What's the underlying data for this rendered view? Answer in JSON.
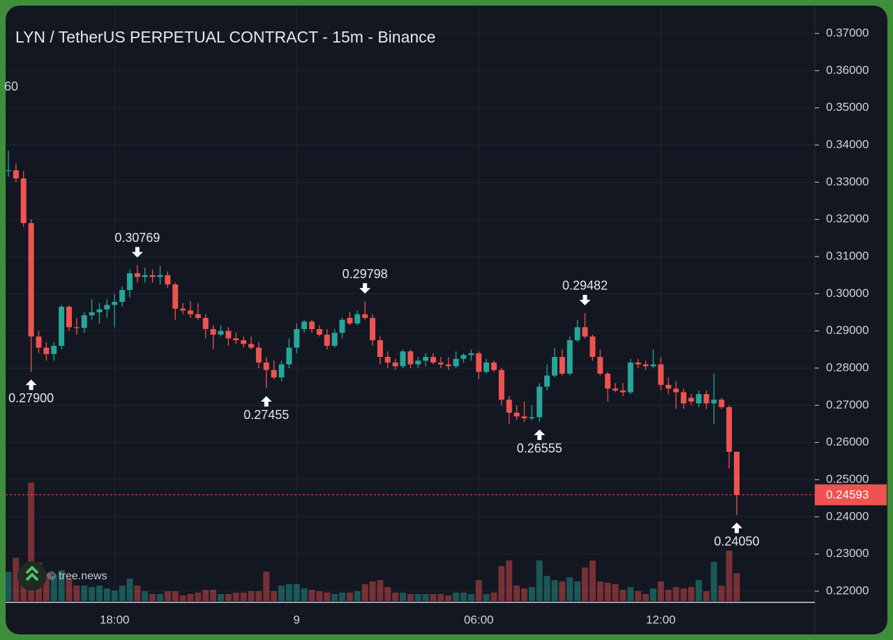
{
  "chart_data": {
    "type": "candlestick",
    "title": "LYN / TetherUS PERPETUAL CONTRACT - 15m - Binance",
    "clipped_label": "60",
    "watermark": "© tree.news",
    "categories": [
      null,
      null,
      null,
      null,
      null,
      null,
      null,
      null,
      null,
      null,
      null,
      null,
      null,
      null,
      "18:00",
      null,
      null,
      null,
      null,
      null,
      null,
      null,
      null,
      null,
      null,
      null,
      null,
      null,
      null,
      null,
      null,
      null,
      null,
      null,
      null,
      null,
      null,
      null,
      "9",
      null,
      null,
      null,
      null,
      null,
      null,
      null,
      null,
      null,
      null,
      null,
      null,
      null,
      null,
      null,
      null,
      null,
      null,
      null,
      null,
      null,
      null,
      null,
      "06:00",
      null,
      null,
      null,
      null,
      null,
      null,
      null,
      null,
      null,
      null,
      null,
      null,
      null,
      null,
      null,
      null,
      null,
      null,
      null,
      null,
      null,
      null,
      null,
      "12:00",
      null,
      null,
      null,
      null,
      null,
      null,
      null,
      null,
      null,
      null
    ],
    "open": [
      0.333,
      0.3332,
      0.331,
      0.319,
      0.2885,
      0.2855,
      0.2838,
      0.286,
      0.2965,
      0.291,
      0.2908,
      0.2942,
      0.295,
      0.2958,
      0.297,
      0.2978,
      0.301,
      0.3055,
      0.3045,
      0.305,
      0.3045,
      0.305,
      0.3025,
      0.296,
      0.2955,
      0.2945,
      0.2935,
      0.2905,
      0.289,
      0.29,
      0.288,
      0.2875,
      0.2865,
      0.2855,
      0.2815,
      0.2795,
      0.2775,
      0.281,
      0.2855,
      0.2905,
      0.2925,
      0.2905,
      0.289,
      0.286,
      0.2895,
      0.2935,
      0.292,
      0.2945,
      0.2935,
      0.2875,
      0.283,
      0.2815,
      0.2805,
      0.2845,
      0.281,
      0.282,
      0.283,
      0.2815,
      0.281,
      0.2805,
      0.2825,
      0.2835,
      0.284,
      0.279,
      0.2815,
      0.2795,
      0.2715,
      0.268,
      0.267,
      0.2665,
      0.2668,
      0.275,
      0.278,
      0.283,
      0.2785,
      0.2875,
      0.291,
      0.2885,
      0.283,
      0.2785,
      0.2745,
      0.274,
      0.2735,
      0.2815,
      0.281,
      0.2805,
      0.281,
      0.2755,
      0.2745,
      0.2735,
      0.272,
      0.2705,
      0.273,
      0.2705,
      0.2715,
      0.2695,
      0.2575
    ],
    "high": [
      0.3385,
      0.335,
      0.333,
      0.32,
      0.29,
      0.287,
      0.287,
      0.297,
      0.297,
      0.2935,
      0.295,
      0.2985,
      0.2975,
      0.2985,
      0.3,
      0.302,
      0.3065,
      0.30769,
      0.307,
      0.3065,
      0.3075,
      0.306,
      0.303,
      0.2975,
      0.298,
      0.2975,
      0.2945,
      0.2915,
      0.2915,
      0.291,
      0.2895,
      0.2885,
      0.2885,
      0.287,
      0.283,
      0.282,
      0.282,
      0.288,
      0.292,
      0.293,
      0.293,
      0.2915,
      0.2905,
      0.2905,
      0.2935,
      0.295,
      0.2955,
      0.29798,
      0.2945,
      0.2885,
      0.2845,
      0.2825,
      0.285,
      0.285,
      0.283,
      0.284,
      0.284,
      0.283,
      0.283,
      0.2845,
      0.284,
      0.285,
      0.2845,
      0.2825,
      0.282,
      0.28,
      0.2725,
      0.27,
      0.271,
      0.27,
      0.276,
      0.281,
      0.2855,
      0.285,
      0.2885,
      0.293,
      0.29482,
      0.289,
      0.285,
      0.279,
      0.276,
      0.276,
      0.2825,
      0.2825,
      0.282,
      0.285,
      0.283,
      0.2775,
      0.2765,
      0.2745,
      0.273,
      0.274,
      0.274,
      0.2785,
      0.272,
      0.27,
      0.2575
    ],
    "low": [
      0.3315,
      0.33,
      0.318,
      0.279,
      0.284,
      0.282,
      0.282,
      0.285,
      0.29,
      0.289,
      0.2895,
      0.293,
      0.292,
      0.2935,
      0.291,
      0.2965,
      0.299,
      0.303,
      0.303,
      0.303,
      0.3025,
      0.3015,
      0.293,
      0.2945,
      0.2935,
      0.293,
      0.288,
      0.285,
      0.2885,
      0.286,
      0.2865,
      0.2855,
      0.285,
      0.28,
      0.27455,
      0.277,
      0.2765,
      0.28,
      0.284,
      0.2895,
      0.2895,
      0.2885,
      0.285,
      0.2855,
      0.288,
      0.2915,
      0.2915,
      0.293,
      0.286,
      0.281,
      0.28,
      0.2795,
      0.28,
      0.28,
      0.28,
      0.2805,
      0.281,
      0.28,
      0.2795,
      0.28,
      0.2815,
      0.282,
      0.277,
      0.2785,
      0.279,
      0.27,
      0.265,
      0.266,
      0.2655,
      0.266,
      0.26555,
      0.274,
      0.2775,
      0.278,
      0.278,
      0.287,
      0.288,
      0.282,
      0.278,
      0.271,
      0.2735,
      0.2725,
      0.273,
      0.28,
      0.2795,
      0.28,
      0.274,
      0.273,
      0.269,
      0.269,
      0.27,
      0.2695,
      0.269,
      0.265,
      0.269,
      0.253,
      0.2405
    ],
    "close": [
      0.3332,
      0.331,
      0.319,
      0.2885,
      0.2855,
      0.2838,
      0.286,
      0.2965,
      0.291,
      0.2908,
      0.2942,
      0.295,
      0.2958,
      0.297,
      0.2978,
      0.301,
      0.3055,
      0.3045,
      0.305,
      0.3045,
      0.305,
      0.3025,
      0.296,
      0.2955,
      0.2945,
      0.2935,
      0.2905,
      0.289,
      0.29,
      0.288,
      0.2875,
      0.2865,
      0.2855,
      0.2815,
      0.2795,
      0.2775,
      0.281,
      0.2855,
      0.2905,
      0.2925,
      0.2905,
      0.289,
      0.286,
      0.2895,
      0.293,
      0.292,
      0.2945,
      0.2935,
      0.2875,
      0.283,
      0.2815,
      0.2805,
      0.2845,
      0.281,
      0.282,
      0.283,
      0.2815,
      0.281,
      0.2805,
      0.2825,
      0.2835,
      0.284,
      0.279,
      0.2815,
      0.2795,
      0.2715,
      0.268,
      0.267,
      0.2665,
      0.2668,
      0.275,
      0.278,
      0.283,
      0.2785,
      0.2875,
      0.291,
      0.2885,
      0.283,
      0.2785,
      0.2745,
      0.274,
      0.2735,
      0.2815,
      0.281,
      0.2805,
      0.281,
      0.2755,
      0.2745,
      0.2735,
      0.2705,
      0.271,
      0.273,
      0.2705,
      0.2715,
      0.2695,
      0.2575,
      0.24593
    ],
    "volume": [
      42,
      62,
      30,
      170,
      55,
      40,
      38,
      44,
      32,
      22,
      22,
      20,
      22,
      18,
      15,
      22,
      32,
      22,
      14,
      10,
      10,
      14,
      14,
      8,
      10,
      12,
      16,
      16,
      10,
      10,
      12,
      12,
      14,
      14,
      42,
      14,
      22,
      24,
      24,
      18,
      16,
      14,
      12,
      10,
      12,
      12,
      14,
      24,
      28,
      30,
      20,
      12,
      12,
      10,
      10,
      10,
      10,
      10,
      8,
      12,
      12,
      10,
      30,
      10,
      12,
      50,
      58,
      22,
      18,
      20,
      58,
      36,
      30,
      28,
      34,
      28,
      48,
      58,
      28,
      26,
      24,
      16,
      20,
      14,
      10,
      18,
      28,
      16,
      20,
      18,
      20,
      30,
      14,
      56,
      22,
      72,
      40
    ],
    "up_color": "#26a69a",
    "down_color": "#ef5350",
    "ylim": [
      0.217,
      0.3775
    ],
    "yticks": [
      {
        "value": 0.37,
        "label": "0.37000"
      },
      {
        "value": 0.36,
        "label": "0.36000"
      },
      {
        "value": 0.35,
        "label": "0.35000"
      },
      {
        "value": 0.34,
        "label": "0.34000"
      },
      {
        "value": 0.33,
        "label": "0.33000"
      },
      {
        "value": 0.32,
        "label": "0.32000"
      },
      {
        "value": 0.31,
        "label": "0.31000"
      },
      {
        "value": 0.3,
        "label": "0.30000"
      },
      {
        "value": 0.29,
        "label": "0.29000"
      },
      {
        "value": 0.28,
        "label": "0.28000"
      },
      {
        "value": 0.27,
        "label": "0.27000"
      },
      {
        "value": 0.26,
        "label": "0.26000"
      },
      {
        "value": 0.25,
        "label": "0.25000"
      },
      {
        "value": 0.24,
        "label": "0.24000"
      },
      {
        "value": 0.23,
        "label": "0.23000"
      },
      {
        "value": 0.22,
        "label": "0.22000"
      }
    ],
    "grid": true,
    "annotations": [
      {
        "x": 3,
        "value": 0.279,
        "label": "0.27900",
        "side": "low"
      },
      {
        "x": 17,
        "value": 0.30769,
        "label": "0.30769",
        "side": "high"
      },
      {
        "x": 34,
        "value": 0.27455,
        "label": "0.27455",
        "side": "low"
      },
      {
        "x": 47,
        "value": 0.29798,
        "label": "0.29798",
        "side": "high"
      },
      {
        "x": 70,
        "value": 0.26555,
        "label": "0.26555",
        "side": "low"
      },
      {
        "x": 76,
        "value": 0.29482,
        "label": "0.29482",
        "side": "high"
      },
      {
        "x": 96,
        "value": 0.2405,
        "label": "0.24050",
        "side": "low"
      }
    ],
    "last_price": {
      "value": 0.24593,
      "label": "0.24593"
    }
  }
}
